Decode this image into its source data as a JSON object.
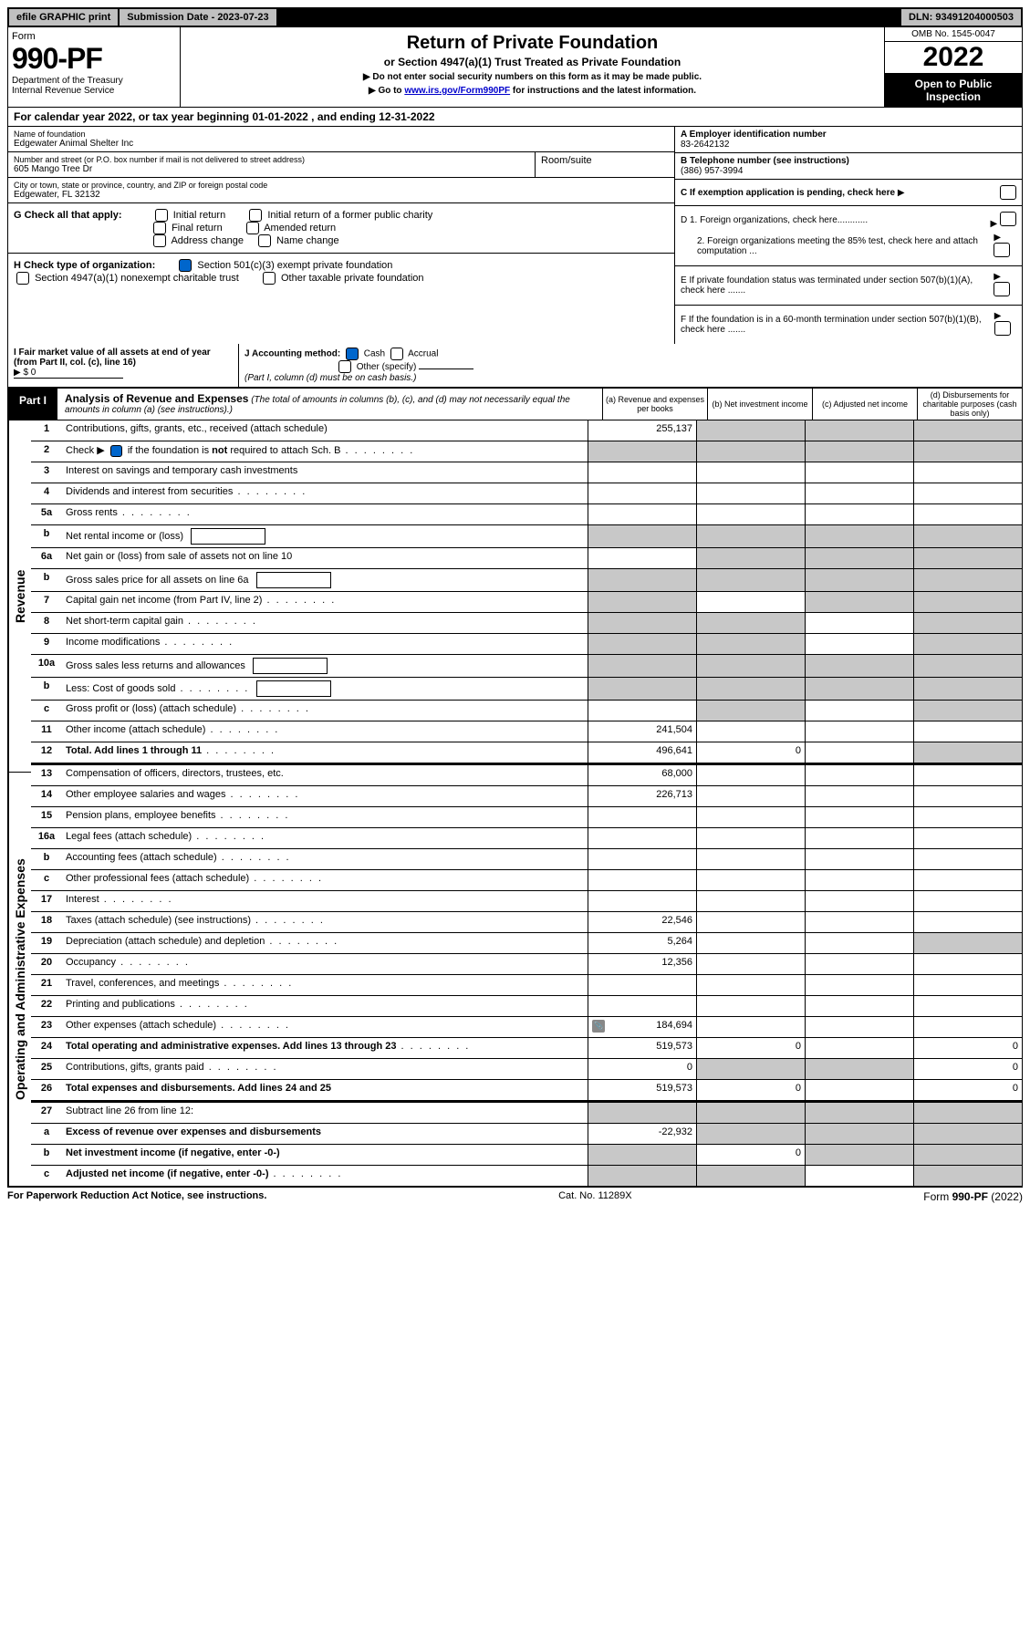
{
  "top": {
    "efile": "efile GRAPHIC print",
    "submission": "Submission Date - 2023-07-23",
    "dln": "DLN: 93491204000503"
  },
  "header": {
    "form_label": "Form",
    "form_no": "990-PF",
    "dept": "Department of the Treasury",
    "irs": "Internal Revenue Service",
    "title": "Return of Private Foundation",
    "subtitle": "or Section 4947(a)(1) Trust Treated as Private Foundation",
    "instr1": "▶ Do not enter social security numbers on this form as it may be made public.",
    "instr2_pre": "▶ Go to ",
    "instr2_link": "www.irs.gov/Form990PF",
    "instr2_post": " for instructions and the latest information.",
    "omb": "OMB No. 1545-0047",
    "year": "2022",
    "open": "Open to Public Inspection"
  },
  "cal_year": "For calendar year 2022, or tax year beginning 01-01-2022           , and ending 12-31-2022",
  "info": {
    "name_label": "Name of foundation",
    "name": "Edgewater Animal Shelter Inc",
    "addr_label": "Number and street (or P.O. box number if mail is not delivered to street address)",
    "addr": "605 Mango Tree Dr",
    "room_label": "Room/suite",
    "city_label": "City or town, state or province, country, and ZIP or foreign postal code",
    "city": "Edgewater, FL  32132",
    "ein_label": "A Employer identification number",
    "ein": "83-2642132",
    "tel_label": "B Telephone number (see instructions)",
    "tel": "(386) 957-3994",
    "c_label": "C If exemption application is pending, check here",
    "d1": "D 1. Foreign organizations, check here............",
    "d2": "2. Foreign organizations meeting the 85% test, check here and attach computation ...",
    "e": "E  If private foundation status was terminated under section 507(b)(1)(A), check here .......",
    "f": "F  If the foundation is in a 60-month termination under section 507(b)(1)(B), check here .......",
    "g_label": "G Check all that apply:",
    "g_opts": [
      "Initial return",
      "Initial return of a former public charity",
      "Final return",
      "Amended return",
      "Address change",
      "Name change"
    ],
    "h_label": "H Check type of organization:",
    "h1": "Section 501(c)(3) exempt private foundation",
    "h2": "Section 4947(a)(1) nonexempt charitable trust",
    "h3": "Other taxable private foundation",
    "i_label": "I Fair market value of all assets at end of year (from Part II, col. (c), line 16)",
    "i_val": "▶ $  0",
    "j_label": "J Accounting method:",
    "j_cash": "Cash",
    "j_accrual": "Accrual",
    "j_other": "Other (specify)",
    "j_note": "(Part I, column (d) must be on cash basis.)"
  },
  "part1": {
    "tab": "Part I",
    "title": "Analysis of Revenue and Expenses",
    "note": "(The total of amounts in columns (b), (c), and (d) may not necessarily equal the amounts in column (a) (see instructions).)",
    "col_a": "(a)   Revenue and expenses per books",
    "col_b": "(b)   Net investment income",
    "col_c": "(c)   Adjusted net income",
    "col_d": "(d)   Disbursements for charitable purposes (cash basis only)"
  },
  "sections": {
    "revenue": "Revenue",
    "expenses": "Operating and Administrative Expenses"
  },
  "rows": [
    {
      "sec": "rev",
      "no": "1",
      "desc": "Contributions, gifts, grants, etc., received (attach schedule)",
      "a": "255,137",
      "b_g": true,
      "c_g": true,
      "d_g": true
    },
    {
      "sec": "rev",
      "no": "2",
      "desc": "Check ▶ ✔ if the foundation is not required to attach Sch. B",
      "dots": true,
      "merged": true
    },
    {
      "sec": "rev",
      "no": "3",
      "desc": "Interest on savings and temporary cash investments"
    },
    {
      "sec": "rev",
      "no": "4",
      "desc": "Dividends and interest from securities",
      "dots": true
    },
    {
      "sec": "rev",
      "no": "5a",
      "desc": "Gross rents",
      "dots": true
    },
    {
      "sec": "rev",
      "no": "b",
      "desc": "Net rental income or (loss)",
      "inline": true,
      "b_g": true,
      "c_g": true,
      "d_g": true,
      "a_g": true
    },
    {
      "sec": "rev",
      "no": "6a",
      "desc": "Net gain or (loss) from sale of assets not on line 10",
      "b_g": true,
      "c_g": true,
      "d_g": true
    },
    {
      "sec": "rev",
      "no": "b",
      "desc": "Gross sales price for all assets on line 6a",
      "inline": true,
      "all_g": true
    },
    {
      "sec": "rev",
      "no": "7",
      "desc": "Capital gain net income (from Part IV, line 2)",
      "dots": true,
      "a_g": true,
      "c_g": true,
      "d_g": true
    },
    {
      "sec": "rev",
      "no": "8",
      "desc": "Net short-term capital gain",
      "dots": true,
      "a_g": true,
      "b_g": true,
      "d_g": true
    },
    {
      "sec": "rev",
      "no": "9",
      "desc": "Income modifications",
      "dots": true,
      "a_g": true,
      "b_g": true,
      "d_g": true
    },
    {
      "sec": "rev",
      "no": "10a",
      "desc": "Gross sales less returns and allowances",
      "inline": true,
      "all_g": true
    },
    {
      "sec": "rev",
      "no": "b",
      "desc": "Less: Cost of goods sold",
      "dots": true,
      "inline": true,
      "all_g": true
    },
    {
      "sec": "rev",
      "no": "c",
      "desc": "Gross profit or (loss) (attach schedule)",
      "dots": true,
      "b_g": true,
      "d_g": true
    },
    {
      "sec": "rev",
      "no": "11",
      "desc": "Other income (attach schedule)",
      "dots": true,
      "a": "241,504"
    },
    {
      "sec": "rev",
      "no": "12",
      "desc": "Total. Add lines 1 through 11",
      "dots": true,
      "bold": true,
      "a": "496,641",
      "b": "0",
      "d_g": true
    },
    {
      "sec": "exp",
      "no": "13",
      "desc": "Compensation of officers, directors, trustees, etc.",
      "a": "68,000"
    },
    {
      "sec": "exp",
      "no": "14",
      "desc": "Other employee salaries and wages",
      "dots": true,
      "a": "226,713"
    },
    {
      "sec": "exp",
      "no": "15",
      "desc": "Pension plans, employee benefits",
      "dots": true
    },
    {
      "sec": "exp",
      "no": "16a",
      "desc": "Legal fees (attach schedule)",
      "dots": true
    },
    {
      "sec": "exp",
      "no": "b",
      "desc": "Accounting fees (attach schedule)",
      "dots": true
    },
    {
      "sec": "exp",
      "no": "c",
      "desc": "Other professional fees (attach schedule)",
      "dots": true
    },
    {
      "sec": "exp",
      "no": "17",
      "desc": "Interest",
      "dots": true
    },
    {
      "sec": "exp",
      "no": "18",
      "desc": "Taxes (attach schedule) (see instructions)",
      "dots": true,
      "a": "22,546"
    },
    {
      "sec": "exp",
      "no": "19",
      "desc": "Depreciation (attach schedule) and depletion",
      "dots": true,
      "a": "5,264",
      "d_g": true
    },
    {
      "sec": "exp",
      "no": "20",
      "desc": "Occupancy",
      "dots": true,
      "a": "12,356"
    },
    {
      "sec": "exp",
      "no": "21",
      "desc": "Travel, conferences, and meetings",
      "dots": true
    },
    {
      "sec": "exp",
      "no": "22",
      "desc": "Printing and publications",
      "dots": true
    },
    {
      "sec": "exp",
      "no": "23",
      "desc": "Other expenses (attach schedule)",
      "dots": true,
      "a": "184,694",
      "icon": true
    },
    {
      "sec": "exp",
      "no": "24",
      "desc": "Total operating and administrative expenses. Add lines 13 through 23",
      "dots": true,
      "bold": true,
      "a": "519,573",
      "b": "0",
      "d": "0"
    },
    {
      "sec": "exp",
      "no": "25",
      "desc": "Contributions, gifts, grants paid",
      "dots": true,
      "a": "0",
      "b_g": true,
      "c_g": true,
      "d": "0"
    },
    {
      "sec": "exp",
      "no": "26",
      "desc": "Total expenses and disbursements. Add lines 24 and 25",
      "bold": true,
      "a": "519,573",
      "b": "0",
      "d": "0"
    },
    {
      "sec": "bot",
      "no": "27",
      "desc": "Subtract line 26 from line 12:",
      "all_g": true
    },
    {
      "sec": "bot",
      "no": "a",
      "desc": "Excess of revenue over expenses and disbursements",
      "bold": true,
      "a": "-22,932",
      "b_g": true,
      "c_g": true,
      "d_g": true
    },
    {
      "sec": "bot",
      "no": "b",
      "desc": "Net investment income (if negative, enter -0-)",
      "bold": true,
      "a_g": true,
      "b": "0",
      "c_g": true,
      "d_g": true
    },
    {
      "sec": "bot",
      "no": "c",
      "desc": "Adjusted net income (if negative, enter -0-)",
      "bold": true,
      "dots": true,
      "a_g": true,
      "b_g": true,
      "d_g": true
    }
  ],
  "footer": {
    "left": "For Paperwork Reduction Act Notice, see instructions.",
    "mid": "Cat. No. 11289X",
    "right": "Form 990-PF (2022)"
  }
}
